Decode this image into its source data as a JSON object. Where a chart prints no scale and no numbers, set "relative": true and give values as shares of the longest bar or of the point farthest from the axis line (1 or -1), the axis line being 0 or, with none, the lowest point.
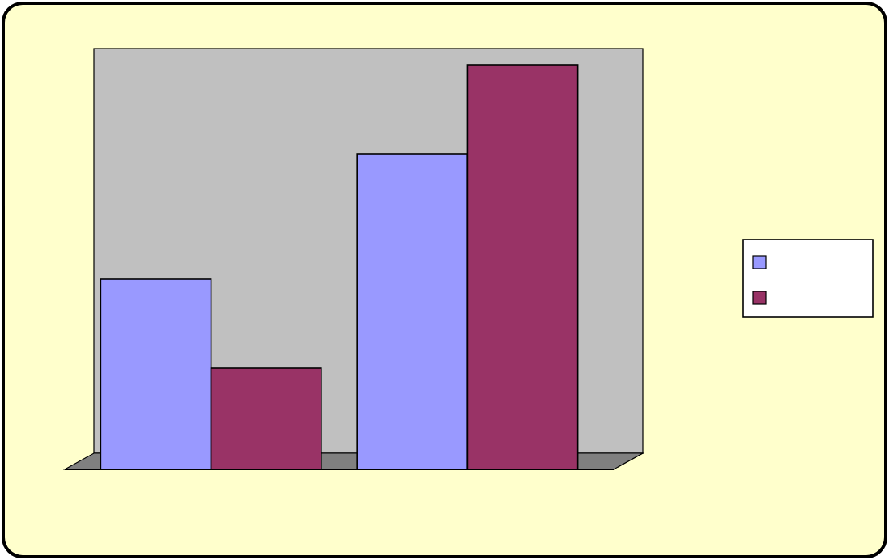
{
  "chart_data": {
    "type": "bar",
    "relative": true,
    "categories": [
      null,
      null
    ],
    "series": [
      {
        "color": "#9999ff",
        "values": [
          0.47,
          0.78
        ]
      },
      {
        "color": "#993366",
        "values": [
          0.25,
          1
        ]
      }
    ]
  }
}
